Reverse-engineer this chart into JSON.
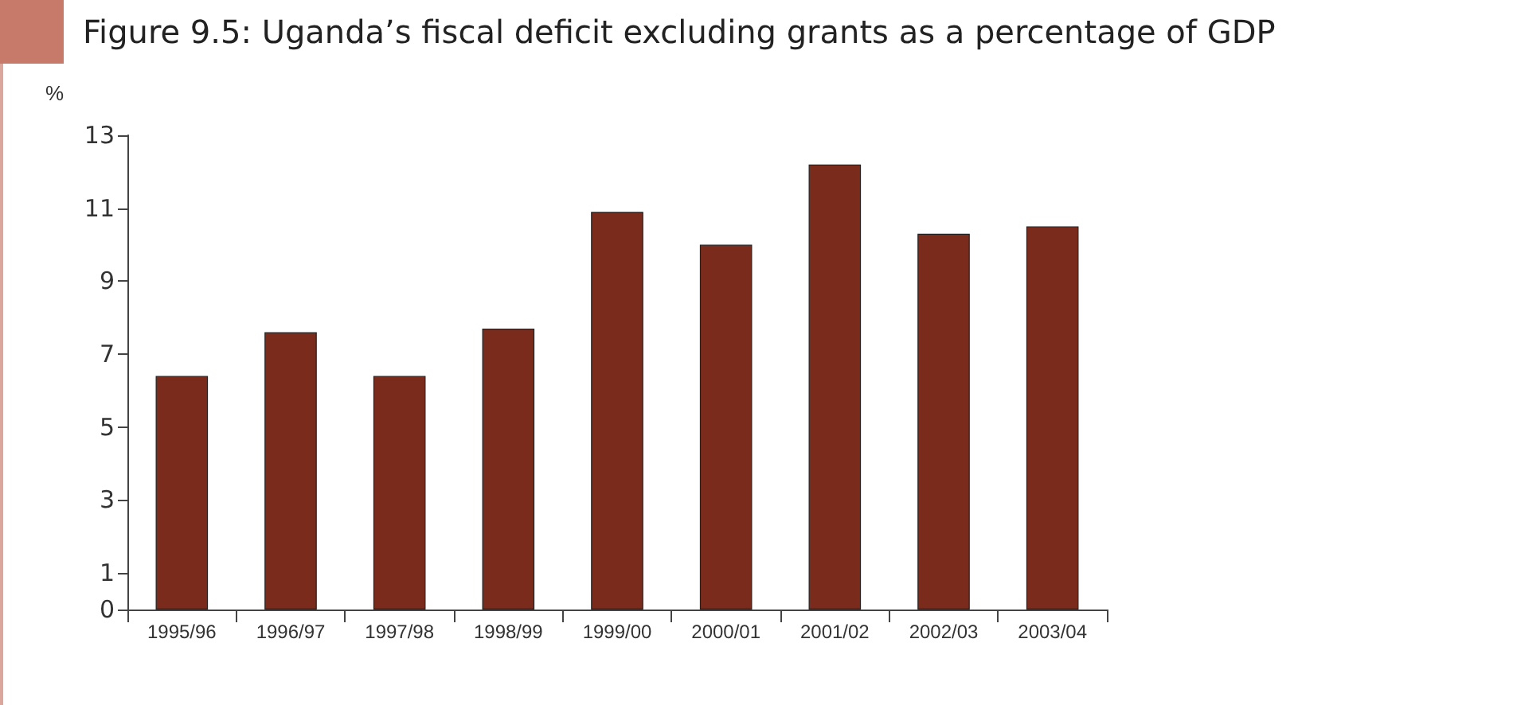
{
  "chart_data": {
    "type": "bar",
    "title": "Figure 9.5: Uganda’s fiscal deficit excluding grants as a percentage of GDP",
    "ylabel": "%",
    "categories": [
      "1995/96",
      "1996/97",
      "1997/98",
      "1998/99",
      "1999/00",
      "2000/01",
      "2001/02",
      "2002/03",
      "2003/04"
    ],
    "values": [
      6.4,
      7.6,
      6.4,
      7.7,
      10.9,
      10.0,
      12.2,
      10.3,
      10.5
    ],
    "color": "#7b2b1b",
    "ylim": [
      0,
      13
    ],
    "yticks": [
      0,
      1,
      3,
      5,
      7,
      9,
      11,
      13
    ],
    "grid": false
  }
}
